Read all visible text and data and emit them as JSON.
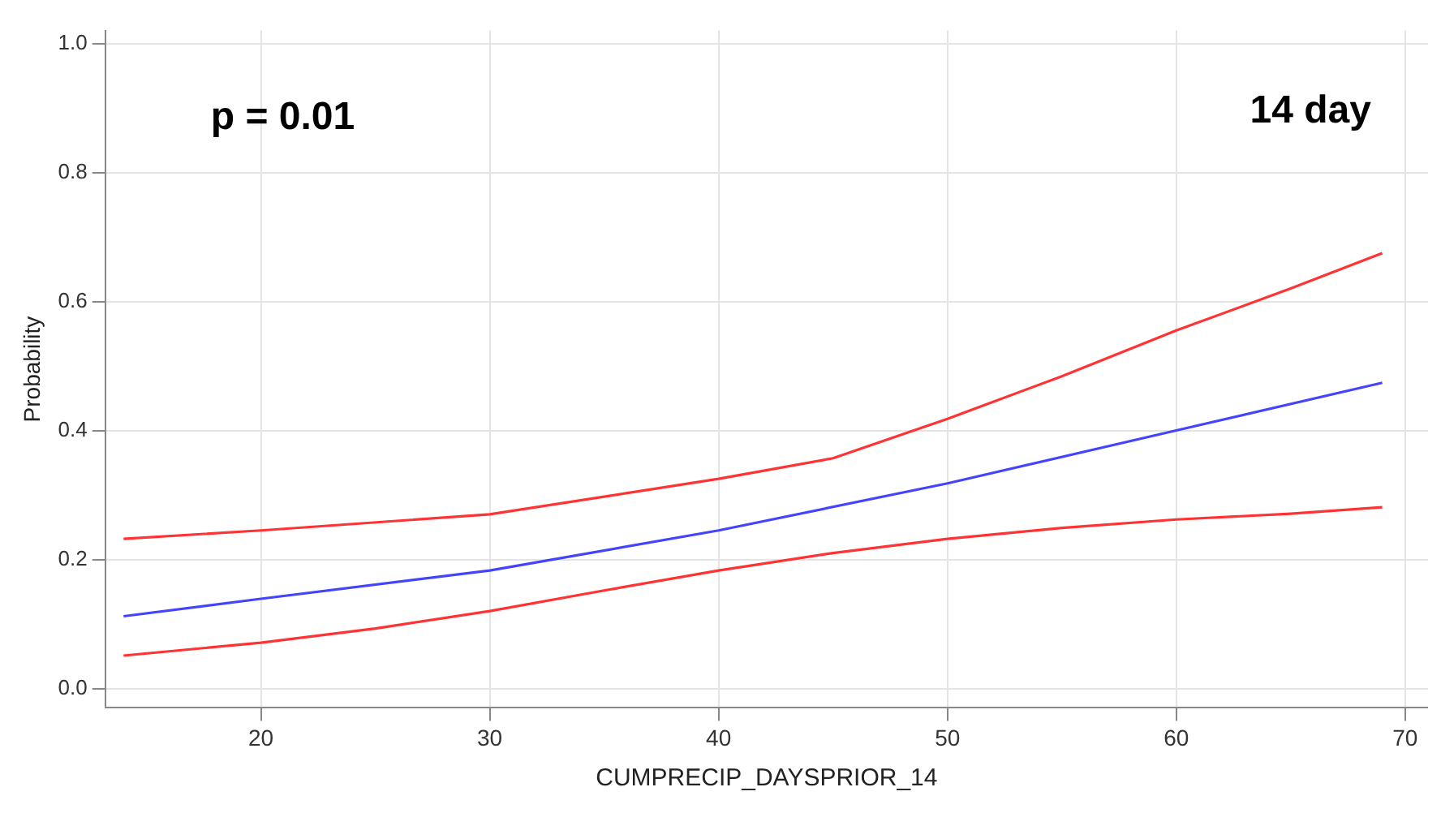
{
  "chart_data": {
    "type": "line",
    "xlabel": "CUMPRECIP_DAYSPRIOR_14",
    "ylabel": "Probability",
    "annotations": [
      "p = 0.01",
      "14 day"
    ],
    "series": [
      {
        "color": "#ff3333",
        "x": [
          14,
          20,
          30,
          40,
          45,
          50,
          55,
          60,
          65,
          69
        ],
        "values": [
          0.232,
          0.245,
          0.27,
          0.325,
          0.357,
          0.418,
          0.484,
          0.555,
          0.62,
          0.675
        ]
      },
      {
        "color": "#4444ff",
        "x": [
          14,
          20,
          30,
          40,
          50,
          60,
          69
        ],
        "values": [
          0.112,
          0.139,
          0.183,
          0.245,
          0.318,
          0.4,
          0.474
        ]
      },
      {
        "color": "#ff3333",
        "x": [
          14,
          20,
          25,
          30,
          35,
          40,
          45,
          50,
          55,
          60,
          65,
          69
        ],
        "values": [
          0.051,
          0.071,
          0.093,
          0.12,
          0.152,
          0.183,
          0.21,
          0.232,
          0.249,
          0.262,
          0.271,
          0.281
        ]
      }
    ],
    "xlim": [
      13.2,
      71
    ],
    "xticks": [
      20,
      30,
      40,
      50,
      60,
      70
    ],
    "ylim": [
      -0.03,
      1.02
    ],
    "yticks": [
      {
        "value": 0,
        "label": "0.0"
      },
      {
        "value": 0.2,
        "label": "0.2"
      },
      {
        "value": 0.4,
        "label": "0.4"
      },
      {
        "value": 0.6,
        "label": "0.6"
      },
      {
        "value": 0.8,
        "label": "0.8"
      },
      {
        "value": 1,
        "label": "1.0"
      }
    ],
    "grid": true,
    "legend": false,
    "marker": "none",
    "line_style": "solid"
  }
}
